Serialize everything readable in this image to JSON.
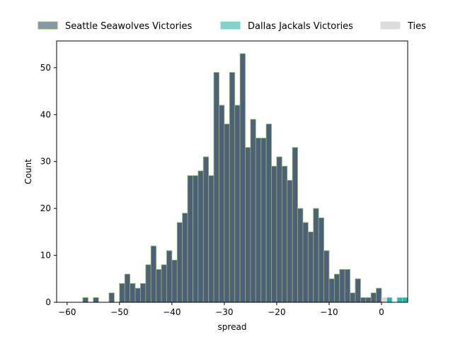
{
  "chart_data": {
    "type": "bar",
    "xlabel": "spread",
    "ylabel": "Count",
    "xlim": [
      -62,
      5
    ],
    "ylim": [
      0,
      55.7
    ],
    "bin_width": 1,
    "grid": false,
    "legend_placement": "top-center",
    "x_ticks": [
      -60,
      -50,
      -40,
      -30,
      -20,
      -10,
      0
    ],
    "y_ticks": [
      0,
      10,
      20,
      30,
      40,
      50
    ],
    "series": [
      {
        "name": "Seattle Seawolves Victories",
        "fill": "#4f5f7a",
        "legend_fill": "#8895a8",
        "edge": "#7fbf5f",
        "x": [
          -57,
          -56,
          -55,
          -54,
          -53,
          -52,
          -51,
          -50,
          -49,
          -48,
          -47,
          -46,
          -45,
          -44,
          -43,
          -42,
          -41,
          -40,
          -39,
          -38,
          -37,
          -36,
          -35,
          -34,
          -33,
          -32,
          -31,
          -30,
          -29,
          -28,
          -27,
          -26,
          -25,
          -24,
          -23,
          -22,
          -21,
          -20,
          -19,
          -18,
          -17,
          -16,
          -15,
          -14,
          -13,
          -12,
          -11,
          -10,
          -9,
          -8,
          -7,
          -6,
          -5,
          -4,
          -3,
          -2,
          -1
        ],
        "values": [
          1,
          0,
          1,
          0,
          0,
          2,
          0,
          4,
          6,
          4,
          3,
          4,
          8,
          12,
          7,
          8,
          11,
          9,
          17,
          19,
          27,
          27,
          28,
          31,
          27,
          49,
          42,
          38,
          49,
          42,
          53,
          33,
          39,
          35,
          35,
          38,
          29,
          31,
          29,
          26,
          33,
          20,
          17,
          15,
          20,
          18,
          11,
          5,
          6,
          7,
          7,
          2,
          5,
          1,
          1,
          2,
          3
        ]
      },
      {
        "name": "Dallas Jackals Victories",
        "fill": "#2ab3a6",
        "legend_fill": "#7fd3cb",
        "edge": "#7fd3cb",
        "x": [
          1,
          3,
          4
        ],
        "values": [
          1,
          1,
          1
        ]
      },
      {
        "name": "Ties",
        "fill": "#dcdcdc",
        "legend_fill": "#dcdcdc",
        "edge": "#dcdcdc",
        "x": [
          0
        ],
        "values": [
          1
        ]
      }
    ]
  }
}
